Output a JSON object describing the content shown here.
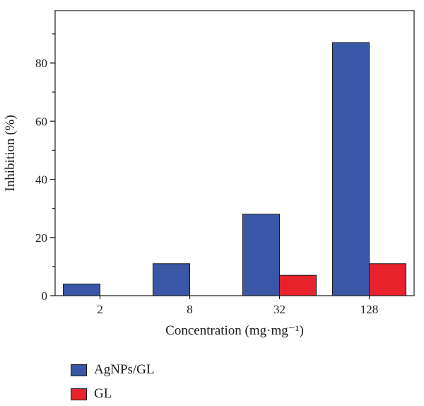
{
  "chart_data": {
    "type": "bar",
    "categories": [
      "2",
      "8",
      "32",
      "128"
    ],
    "series": [
      {
        "name": "AgNPs/GL",
        "values": [
          4,
          11,
          28,
          87
        ],
        "color": "#3a56a7"
      },
      {
        "name": "GL",
        "values": [
          0,
          0,
          7,
          11
        ],
        "color": "#e8222a"
      }
    ],
    "title": "",
    "xlabel": "Concentration (mg·mg⁻¹)",
    "ylabel": "Inhibition (%)",
    "ylim": [
      0,
      98
    ],
    "yticks": [
      "0",
      "20",
      "40",
      "60",
      "80"
    ],
    "grid": false,
    "legend_position": "bottom-left"
  }
}
